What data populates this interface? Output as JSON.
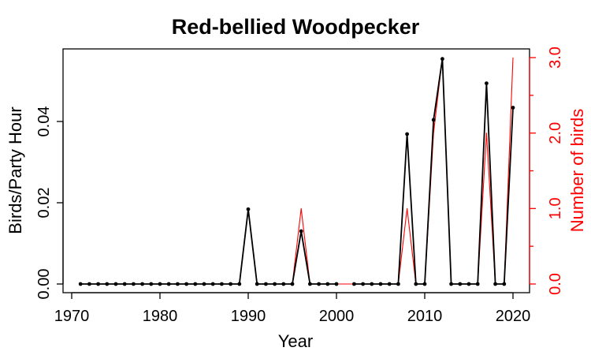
{
  "chart_data": {
    "type": "line",
    "title": "Red-bellied Woodpecker",
    "xlabel": "Year",
    "ylabel": "Birds/Party Hour",
    "ylabel_right": "Number of birds",
    "xlim": [
      1970,
      2020
    ],
    "ylim": [
      0,
      0.05
    ],
    "ylim_right": [
      0,
      3
    ],
    "x_ticks": [
      1970,
      1980,
      1990,
      2000,
      2010,
      2020
    ],
    "y_ticks": [
      "0.00",
      "0.02",
      "0.04"
    ],
    "y_ticks_right": [
      "0.0",
      "1.0",
      "2.0",
      "3.0"
    ],
    "grid": false,
    "colors": {
      "left": "#000000",
      "right": "#ff0000"
    },
    "series": [
      {
        "axis": "left",
        "x": [
          1971,
          1972,
          1973,
          1974,
          1975,
          1976,
          1977,
          1978,
          1979,
          1980,
          1981,
          1982,
          1983,
          1984,
          1985,
          1986,
          1987,
          1988,
          1989,
          1990,
          1991,
          1992,
          1993,
          1994,
          1995,
          1996,
          1997,
          1998,
          1999,
          2000,
          null,
          2002,
          2003,
          2004,
          2005,
          2006,
          2007,
          2008,
          2009,
          2010,
          2011,
          2012,
          2013,
          2014,
          2015,
          2016,
          2017,
          2018,
          2019,
          2020
        ],
        "values": [
          0,
          0,
          0,
          0,
          0,
          0,
          0,
          0,
          0,
          0,
          0,
          0,
          0,
          0,
          0,
          0,
          0,
          0,
          0,
          0.0184,
          0,
          0,
          0,
          0,
          0,
          0.013,
          0,
          0,
          0,
          0,
          null,
          0,
          0,
          0,
          0,
          0,
          0,
          0.0369,
          0,
          0,
          0.0404,
          0.0554,
          0,
          0,
          0,
          0,
          0.0494,
          0,
          0,
          0.0434
        ]
      },
      {
        "axis": "right",
        "x": [
          1971,
          1972,
          1973,
          1974,
          1975,
          1976,
          1977,
          1978,
          1979,
          1980,
          1981,
          1982,
          1983,
          1984,
          1985,
          1986,
          1987,
          1988,
          1989,
          1990,
          1991,
          1992,
          1993,
          1994,
          1995,
          1996,
          1997,
          1998,
          1999,
          2000,
          2001,
          2002,
          2003,
          2004,
          2005,
          2006,
          2007,
          2008,
          2009,
          2010,
          2011,
          2012,
          2013,
          2014,
          2015,
          2016,
          2017,
          2018,
          2019,
          2020
        ],
        "values": [
          0,
          0,
          0,
          0,
          0,
          0,
          0,
          0,
          0,
          0,
          0,
          0,
          0,
          0,
          0,
          0,
          0,
          0,
          0,
          1,
          0,
          0,
          0,
          0,
          0,
          1,
          0,
          0,
          0,
          0,
          0,
          0,
          0,
          0,
          0,
          0,
          0,
          1,
          0,
          0,
          2,
          3,
          0,
          0,
          0,
          0,
          2,
          0,
          0,
          3
        ]
      }
    ]
  }
}
